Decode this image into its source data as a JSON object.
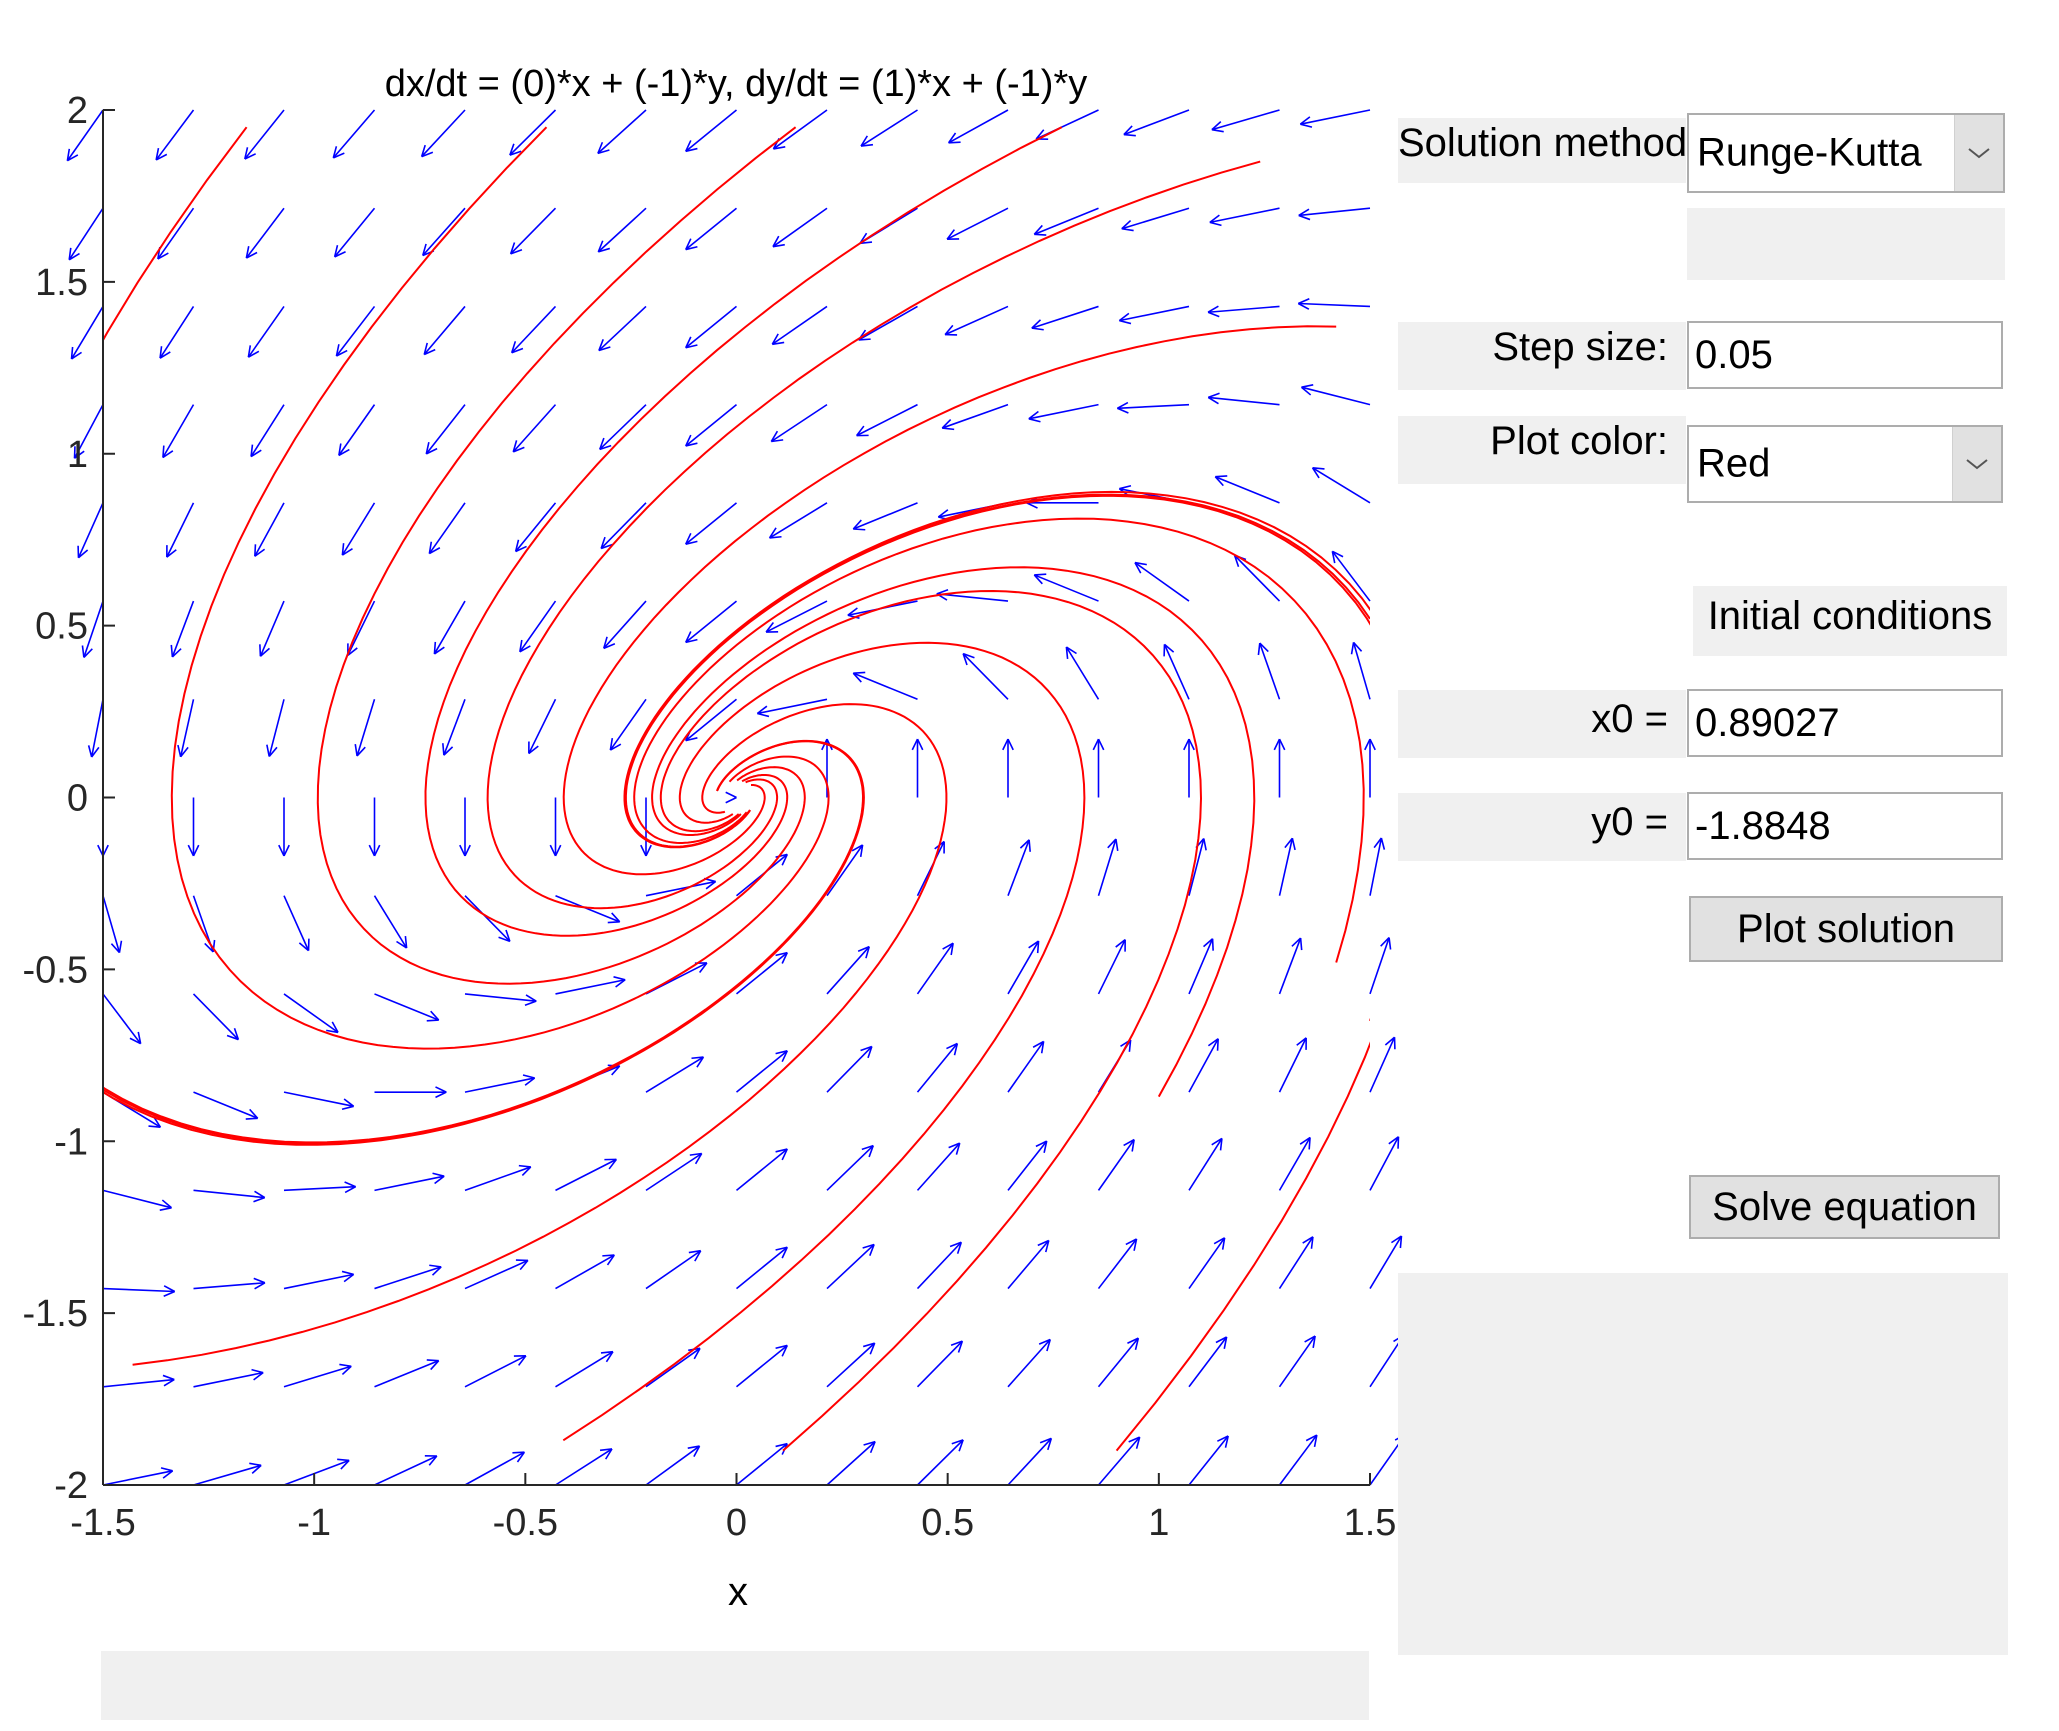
{
  "plot": {
    "title": "dx/dt = (0)*x + (-1)*y, dy/dt = (1)*x + (-1)*y",
    "xlabel": "x",
    "x_ticks": [
      "-1.5",
      "-1",
      "-0.5",
      "0",
      "0.5",
      "1",
      "1.5"
    ],
    "y_ticks": [
      "2",
      "1.5",
      "1",
      "0.5",
      "0",
      "-0.5",
      "-1",
      "-1.5",
      "-2"
    ],
    "xlim": [
      -1.5,
      1.5
    ],
    "ylim": [
      -2,
      2
    ],
    "field_color": "#0000ff",
    "solution_color": "#ff0000"
  },
  "chart_data": {
    "type": "line",
    "title": "dx/dt = (0)*x + (-1)*y, dy/dt = (1)*x + (-1)*y",
    "xlabel": "x",
    "ylabel": "",
    "xlim": [
      -1.5,
      1.5
    ],
    "ylim": [
      -2,
      2
    ],
    "system": {
      "a": 0,
      "b": -1,
      "c": 1,
      "d": -1
    },
    "trajectory_starts": [
      [
        -1.5,
        1.3
      ],
      [
        -1.5,
        -0.85
      ],
      [
        -1.43,
        -1.65
      ],
      [
        -0.41,
        -1.87
      ],
      [
        0.11,
        -1.9
      ],
      [
        0.9,
        -1.9
      ],
      [
        1.5,
        -0.65
      ],
      [
        1.42,
        -0.48
      ],
      [
        1.5,
        0.52
      ],
      [
        1.42,
        1.37
      ],
      [
        1.24,
        1.85
      ],
      [
        0.77,
        1.95
      ],
      [
        0.14,
        1.95
      ],
      [
        -0.45,
        1.95
      ],
      [
        -1.16,
        1.95
      ],
      [
        1.0,
        -0.87
      ]
    ]
  },
  "controls": {
    "solution_method_label": "Solution method:",
    "solution_method_value": "Runge-Kutta",
    "step_size_label": "Step size:",
    "step_size_value": "0.05",
    "plot_color_label": "Plot color:",
    "plot_color_value": "Red",
    "initial_conditions_label": "Initial conditions",
    "x0_label": "x0 =",
    "x0_value": "0.89027",
    "y0_label": "y0 =",
    "y0_value": "-1.8848",
    "plot_solution_label": "Plot solution",
    "solve_equation_label": "Solve equation"
  }
}
